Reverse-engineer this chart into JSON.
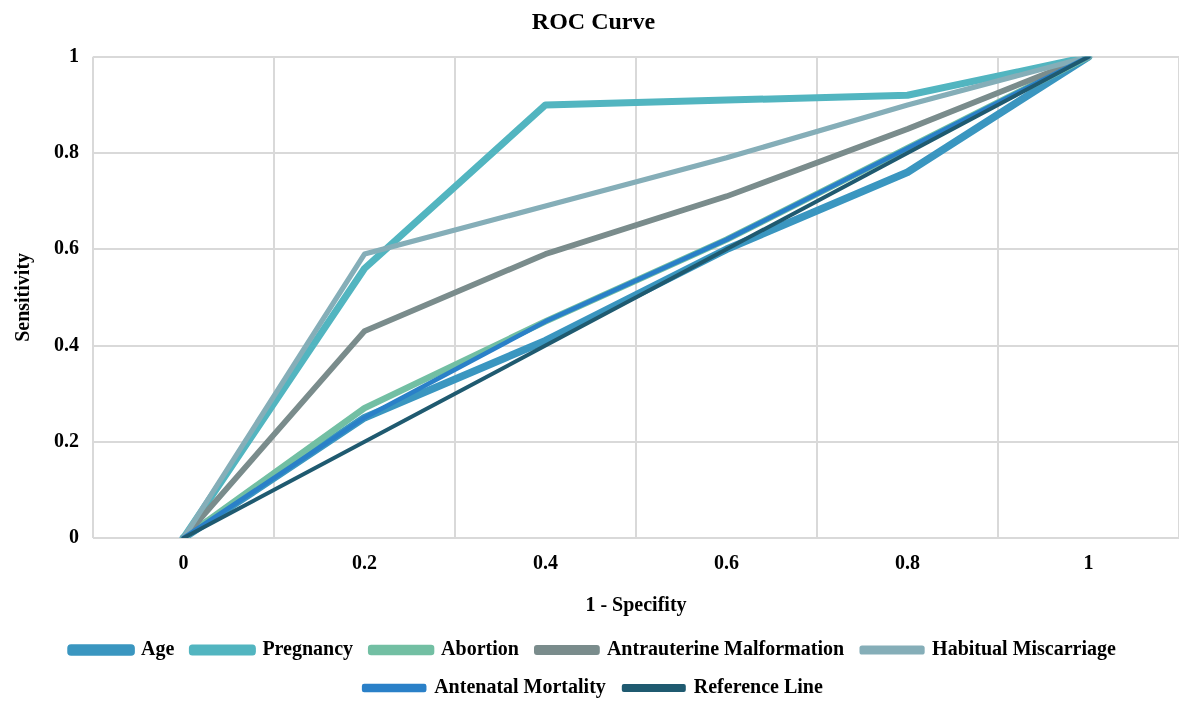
{
  "chart_data": {
    "type": "line",
    "title": "ROC Curve",
    "xlabel": "1 - Specifity",
    "ylabel": "Sensitivity",
    "categories": [
      "0",
      "0.2",
      "0.4",
      "0.6",
      "0.8",
      "1"
    ],
    "ylim": [
      0,
      1
    ],
    "yticks": [
      0,
      0.2,
      0.4,
      0.6,
      0.8,
      1
    ],
    "grid": true,
    "legend": "bottom",
    "marker": "none",
    "line_style": "solid",
    "series": [
      {
        "name": "Age",
        "color": "#3a96c0",
        "values": [
          0,
          0.25,
          0.41,
          0.6,
          0.76,
          1
        ]
      },
      {
        "name": "Pregnancy",
        "color": "#52b5c0",
        "values": [
          0,
          0.56,
          0.9,
          0.91,
          0.92,
          1
        ]
      },
      {
        "name": "Abortion",
        "color": "#72bfa3",
        "values": [
          0,
          0.27,
          0.45,
          0.62,
          0.81,
          1
        ]
      },
      {
        "name": "Antrauterine Malformation",
        "color": "#7a8c8c",
        "values": [
          0,
          0.43,
          0.59,
          0.71,
          0.85,
          1
        ]
      },
      {
        "name": "Habitual Miscarriage",
        "color": "#85aeb8",
        "values": [
          0,
          0.59,
          0.69,
          0.79,
          0.9,
          1
        ]
      },
      {
        "name": "Antenatal Mortality",
        "color": "#2a80c8",
        "values": [
          0,
          0.25,
          0.45,
          0.62,
          0.81,
          1
        ]
      },
      {
        "name": "Reference Line",
        "color": "#1f5a70",
        "values": [
          0,
          0.2,
          0.4,
          0.6,
          0.8,
          1
        ]
      }
    ]
  }
}
